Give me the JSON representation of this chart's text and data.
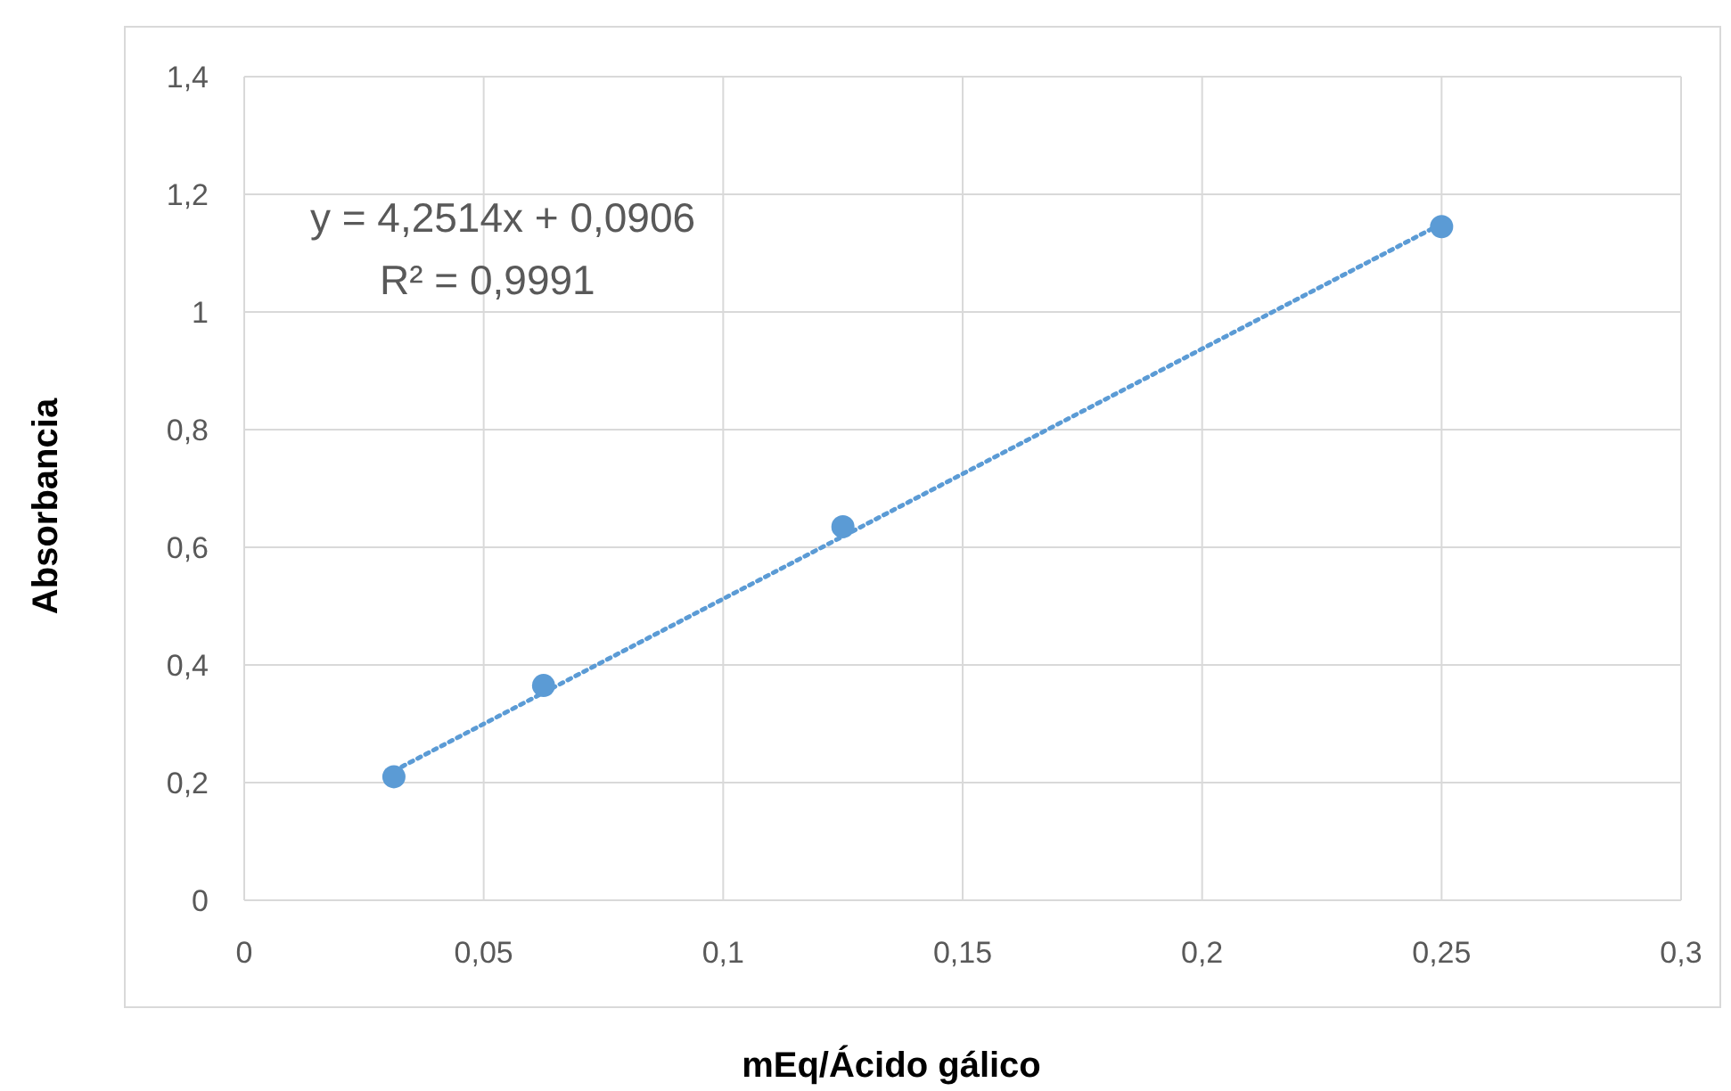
{
  "chart_data": {
    "type": "scatter",
    "xlabel": "mEq/Ácido gálico",
    "ylabel": "Absorbancia",
    "xlim": [
      0,
      0.3
    ],
    "xticks": [
      0,
      {
        "value": 0.05,
        "label": "0,05"
      },
      {
        "value": 0.1,
        "label": "0,1"
      },
      {
        "value": 0.15,
        "label": "0,15"
      },
      {
        "value": 0.2,
        "label": "0,2"
      },
      {
        "value": 0.25,
        "label": "0,25"
      },
      {
        "value": 0.3,
        "label": "0,3"
      }
    ],
    "ylim": [
      0,
      1.4
    ],
    "yticks": [
      0,
      {
        "value": 0.2,
        "label": "0,2"
      },
      {
        "value": 0.4,
        "label": "0,4"
      },
      {
        "value": 0.6,
        "label": "0,6"
      },
      {
        "value": 0.8,
        "label": "0,8"
      },
      1,
      {
        "value": 1.2,
        "label": "1,2"
      },
      {
        "value": 1.4,
        "label": "1,4"
      }
    ],
    "grid": true,
    "series": [
      {
        "type": "line",
        "color": "#5b9bd5",
        "x": [
          0.03125,
          0.25
        ],
        "values": [
          0.22,
          1.15
        ],
        "line_style": "dotted",
        "marker": "none"
      },
      {
        "type": "scatter",
        "color": "#5b9bd5",
        "x": [
          0.03125,
          0.0625,
          0.125,
          0.25
        ],
        "values": [
          0.21,
          0.365,
          0.635,
          1.145
        ],
        "marker": "circle"
      }
    ],
    "annotations": [
      "y = 4,2514x + 0,0906",
      "R² = 0,9991"
    ]
  }
}
